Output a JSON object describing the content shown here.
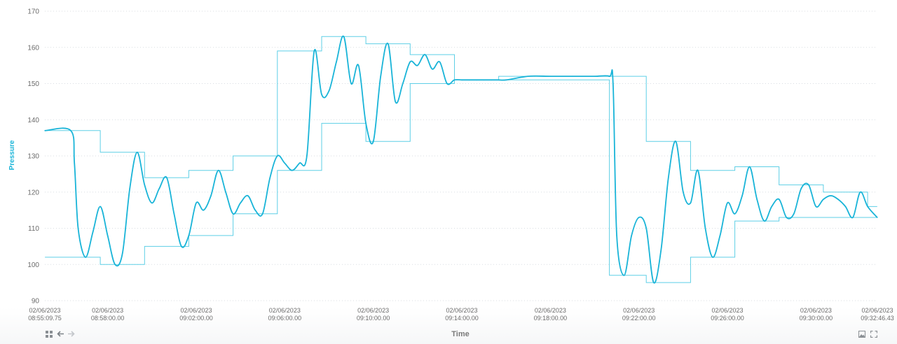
{
  "chart_data": {
    "type": "line",
    "title": "",
    "xlabel": "Time",
    "ylabel": "Pressure",
    "ylim": [
      90,
      170
    ],
    "y_ticks": [
      90,
      100,
      110,
      120,
      130,
      140,
      150,
      160,
      170
    ],
    "x_ticks": [
      {
        "date": "02/06/2023",
        "time": "08:55:09.75"
      },
      {
        "date": "02/06/2023",
        "time": "08:58:00.00"
      },
      {
        "date": "02/06/2023",
        "time": "09:02:00.00"
      },
      {
        "date": "02/06/2023",
        "time": "09:06:00.00"
      },
      {
        "date": "02/06/2023",
        "time": "09:10:00.00"
      },
      {
        "date": "02/06/2023",
        "time": "09:14:00.00"
      },
      {
        "date": "02/06/2023",
        "time": "09:18:00.00"
      },
      {
        "date": "02/06/2023",
        "time": "09:22:00.00"
      },
      {
        "date": "02/06/2023",
        "time": "09:26:00.00"
      },
      {
        "date": "02/06/2023",
        "time": "09:30:00.00"
      },
      {
        "date": "02/06/2023",
        "time": "09:32:46.43"
      }
    ],
    "xlim": [
      "08:55:09.75",
      "09:32:46.43"
    ],
    "grid": true,
    "series": [
      {
        "role": "raw",
        "color": "#19b4d8",
        "x": [
          "08:55:10",
          "08:56:20",
          "08:56:30",
          "08:56:40",
          "08:57:00",
          "08:57:20",
          "08:57:40",
          "08:58:00",
          "08:58:20",
          "08:58:40",
          "08:59:00",
          "08:59:20",
          "08:59:40",
          "09:00:00",
          "09:00:20",
          "09:00:40",
          "09:01:00",
          "09:01:20",
          "09:01:40",
          "09:02:00",
          "09:02:20",
          "09:02:40",
          "09:03:00",
          "09:03:20",
          "09:03:40",
          "09:04:00",
          "09:04:20",
          "09:04:40",
          "09:05:00",
          "09:05:20",
          "09:05:40",
          "09:06:00",
          "09:06:20",
          "09:06:40",
          "09:07:00",
          "09:07:20",
          "09:07:40",
          "09:08:00",
          "09:08:20",
          "09:08:40",
          "09:09:00",
          "09:09:20",
          "09:09:40",
          "09:10:00",
          "09:10:20",
          "09:10:40",
          "09:11:00",
          "09:11:20",
          "09:11:40",
          "09:12:00",
          "09:12:20",
          "09:12:40",
          "09:13:00",
          "09:13:20",
          "09:13:40",
          "09:14:00",
          "09:14:20",
          "09:14:40",
          "09:15:00",
          "09:15:20",
          "09:15:40",
          "09:16:00",
          "09:17:00",
          "09:18:00",
          "09:19:00",
          "09:20:00",
          "09:20:40",
          "09:20:50",
          "09:21:00",
          "09:21:20",
          "09:21:40",
          "09:22:00",
          "09:22:20",
          "09:22:40",
          "09:23:00",
          "09:23:20",
          "09:23:40",
          "09:24:00",
          "09:24:20",
          "09:24:40",
          "09:25:00",
          "09:25:20",
          "09:25:40",
          "09:26:00",
          "09:26:20",
          "09:26:40",
          "09:27:00",
          "09:27:20",
          "09:27:40",
          "09:28:00",
          "09:28:20",
          "09:28:40",
          "09:29:00",
          "09:29:20",
          "09:29:40",
          "09:30:00",
          "09:30:20",
          "09:30:40",
          "09:31:00",
          "09:31:20",
          "09:31:40",
          "09:32:00",
          "09:32:20",
          "09:32:46"
        ],
        "y": [
          137,
          137,
          128,
          110,
          102,
          109,
          116,
          108,
          100,
          103,
          121,
          131,
          122,
          117,
          121,
          124,
          114,
          105,
          108,
          117,
          115,
          119,
          126,
          120,
          114,
          117,
          119,
          115,
          114,
          124,
          130,
          128,
          126,
          128,
          130,
          159,
          147,
          148,
          156,
          163,
          150,
          155,
          139,
          134,
          152,
          161,
          145,
          150,
          156,
          155,
          158,
          154,
          156,
          150,
          151,
          151,
          151,
          151,
          151,
          151,
          151,
          151,
          152,
          152,
          152,
          152,
          152,
          150,
          108,
          97,
          108,
          113,
          110,
          95,
          104,
          124,
          134,
          120,
          117,
          126,
          110,
          102,
          108,
          117,
          114,
          119,
          127,
          118,
          112,
          116,
          118,
          113,
          114,
          121,
          122,
          116,
          118,
          119,
          118,
          116,
          113,
          120,
          116,
          113
        ]
      }
    ]
  },
  "controls": {
    "grid_toggle_icon": "grid-icon",
    "back_icon": "arrow-left-icon",
    "forward_icon": "arrow-right-icon",
    "screenshot_icon": "image-icon",
    "fullscreen_icon": "fullscreen-icon"
  },
  "colors": {
    "series": "#19b4d8",
    "envelope": "#5ecfe6",
    "y_axis_title": "#19b4d8"
  }
}
